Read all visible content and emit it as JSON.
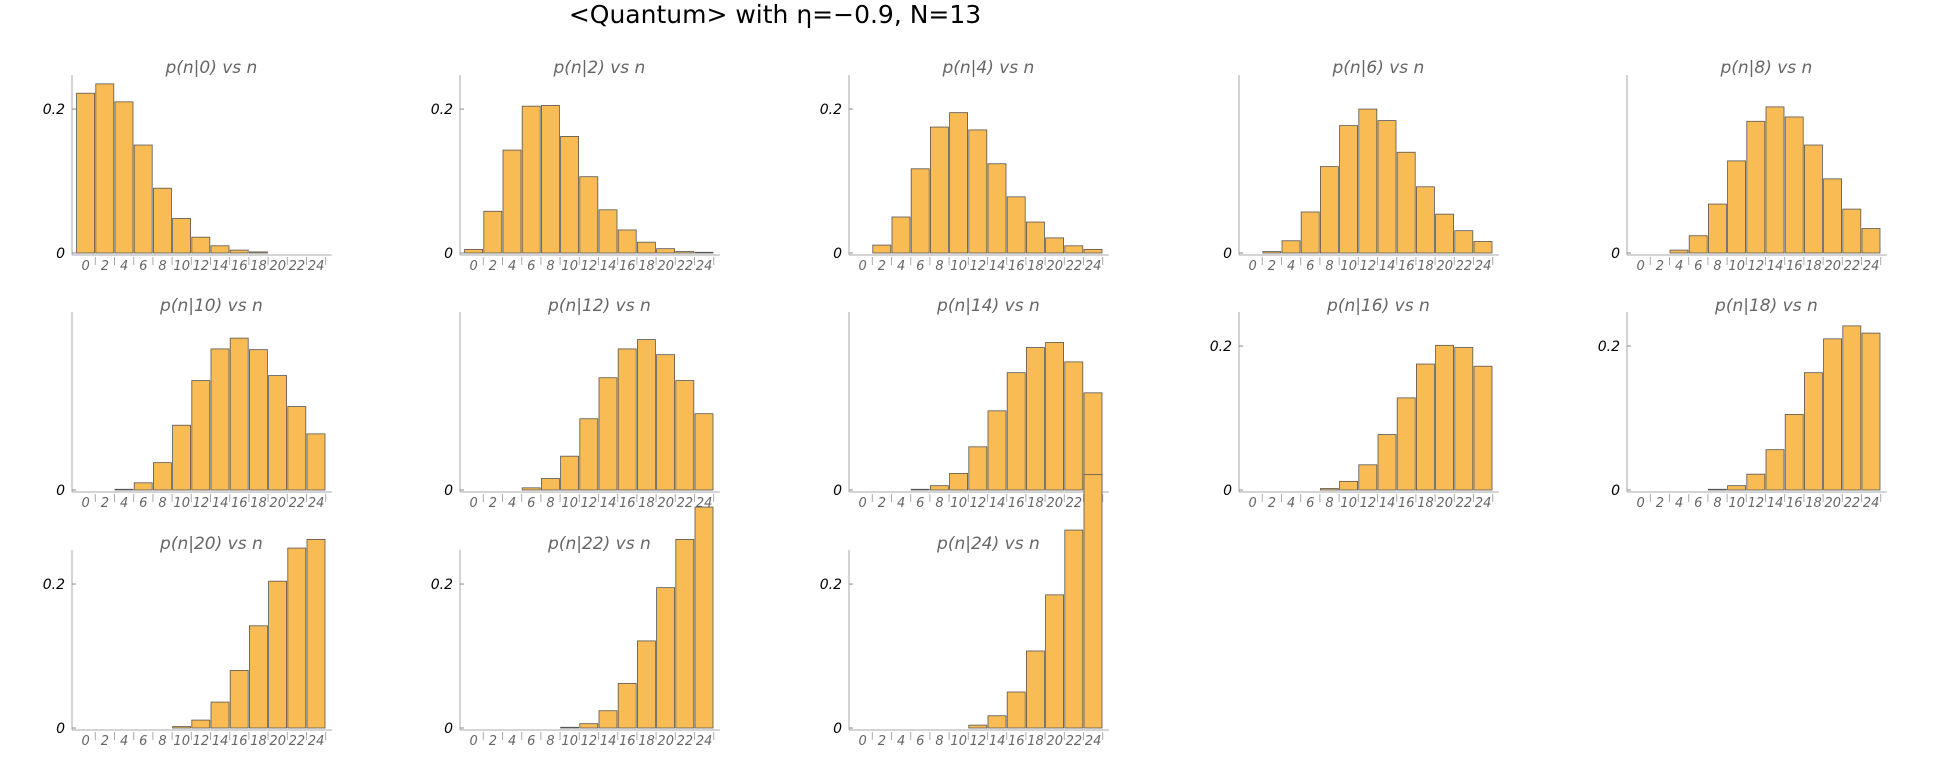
{
  "title": "<Quantum> with η=−0.9, N=13",
  "chart_data": [
    {
      "type": "bar",
      "title": "p(n|0) vs n",
      "categories": [
        0,
        2,
        4,
        6,
        8,
        10,
        12,
        14,
        16,
        18,
        20,
        22,
        24
      ],
      "values": [
        0.222,
        0.235,
        0.21,
        0.15,
        0.09,
        0.048,
        0.022,
        0.01,
        0.004,
        0.0015,
        0.0005,
        0.0001,
        0.0
      ],
      "yticks": [
        0,
        0.2
      ]
    },
    {
      "type": "bar",
      "title": "p(n|2) vs n",
      "categories": [
        0,
        2,
        4,
        6,
        8,
        10,
        12,
        14,
        16,
        18,
        20,
        22,
        24
      ],
      "values": [
        0.005,
        0.058,
        0.143,
        0.204,
        0.205,
        0.162,
        0.106,
        0.06,
        0.032,
        0.015,
        0.006,
        0.002,
        0.001
      ],
      "yticks": [
        0,
        0.2
      ]
    },
    {
      "type": "bar",
      "title": "p(n|4) vs n",
      "categories": [
        0,
        2,
        4,
        6,
        8,
        10,
        12,
        14,
        16,
        18,
        20,
        22,
        24
      ],
      "values": [
        0.0,
        0.011,
        0.05,
        0.117,
        0.175,
        0.195,
        0.171,
        0.124,
        0.078,
        0.043,
        0.021,
        0.01,
        0.005
      ],
      "yticks": [
        0,
        0.2
      ]
    },
    {
      "type": "bar",
      "title": "p(n|6) vs n",
      "categories": [
        0,
        2,
        4,
        6,
        8,
        10,
        12,
        14,
        16,
        18,
        20,
        22,
        24
      ],
      "values": [
        0.0,
        0.002,
        0.017,
        0.057,
        0.12,
        0.177,
        0.2,
        0.184,
        0.14,
        0.092,
        0.054,
        0.031,
        0.016
      ],
      "yticks": [
        0
      ]
    },
    {
      "type": "bar",
      "title": "p(n|8) vs n",
      "categories": [
        0,
        2,
        4,
        6,
        8,
        10,
        12,
        14,
        16,
        18,
        20,
        22,
        24
      ],
      "values": [
        0.0,
        0.0,
        0.004,
        0.024,
        0.068,
        0.128,
        0.183,
        0.203,
        0.189,
        0.15,
        0.103,
        0.061,
        0.034
      ],
      "yticks": [
        0
      ]
    },
    {
      "type": "bar",
      "title": "p(n|10) vs n",
      "categories": [
        0,
        2,
        4,
        6,
        8,
        10,
        12,
        14,
        16,
        18,
        20,
        22,
        24
      ],
      "values": [
        0.0,
        0.0,
        0.001,
        0.01,
        0.038,
        0.09,
        0.152,
        0.196,
        0.211,
        0.195,
        0.159,
        0.116,
        0.078
      ],
      "yticks": [
        0
      ]
    },
    {
      "type": "bar",
      "title": "p(n|12) vs n",
      "categories": [
        0,
        2,
        4,
        6,
        8,
        10,
        12,
        14,
        16,
        18,
        20,
        22,
        24
      ],
      "values": [
        0.0,
        0.0,
        0.0,
        0.003,
        0.016,
        0.047,
        0.099,
        0.156,
        0.196,
        0.209,
        0.188,
        0.152,
        0.106
      ],
      "yticks": [
        0
      ]
    },
    {
      "type": "bar",
      "title": "p(n|14) vs n",
      "categories": [
        0,
        2,
        4,
        6,
        8,
        10,
        12,
        14,
        16,
        18,
        20,
        22,
        24
      ],
      "values": [
        0.0,
        0.0,
        0.0,
        0.001,
        0.006,
        0.023,
        0.06,
        0.11,
        0.163,
        0.198,
        0.205,
        0.178,
        0.135
      ],
      "yticks": [
        0
      ]
    },
    {
      "type": "bar",
      "title": "p(n|16) vs n",
      "categories": [
        0,
        2,
        4,
        6,
        8,
        10,
        12,
        14,
        16,
        18,
        20,
        22,
        24
      ],
      "values": [
        0.0,
        0.0,
        0.0,
        0.0,
        0.002,
        0.012,
        0.035,
        0.077,
        0.128,
        0.175,
        0.201,
        0.198,
        0.172
      ],
      "yticks": [
        0,
        0.2
      ]
    },
    {
      "type": "bar",
      "title": "p(n|18) vs n",
      "categories": [
        0,
        2,
        4,
        6,
        8,
        10,
        12,
        14,
        16,
        18,
        20,
        22,
        24
      ],
      "values": [
        0.0,
        0.0,
        0.0,
        0.0,
        0.001,
        0.006,
        0.022,
        0.056,
        0.105,
        0.163,
        0.21,
        0.228,
        0.218
      ],
      "yticks": [
        0,
        0.2
      ]
    },
    {
      "type": "bar",
      "title": "p(n|20) vs n",
      "categories": [
        0,
        2,
        4,
        6,
        8,
        10,
        12,
        14,
        16,
        18,
        20,
        22,
        24
      ],
      "values": [
        0.0,
        0.0,
        0.0,
        0.0,
        0.0,
        0.002,
        0.011,
        0.036,
        0.08,
        0.142,
        0.204,
        0.25,
        0.262
      ],
      "yticks": [
        0,
        0.2
      ]
    },
    {
      "type": "bar",
      "title": "p(n|22) vs n",
      "categories": [
        0,
        2,
        4,
        6,
        8,
        10,
        12,
        14,
        16,
        18,
        20,
        22,
        24
      ],
      "values": [
        0.0,
        0.0,
        0.0,
        0.0,
        0.0,
        0.001,
        0.006,
        0.024,
        0.062,
        0.121,
        0.195,
        0.262,
        0.307
      ],
      "yticks": [
        0,
        0.2
      ]
    },
    {
      "type": "bar",
      "title": "p(n|24) vs n",
      "categories": [
        0,
        2,
        4,
        6,
        8,
        10,
        12,
        14,
        16,
        18,
        20,
        22,
        24
      ],
      "values": [
        0.0,
        0.0,
        0.0,
        0.0,
        0.0,
        0.0,
        0.004,
        0.017,
        0.05,
        0.107,
        0.185,
        0.275,
        0.352
      ],
      "yticks": [
        0,
        0.2
      ]
    }
  ]
}
